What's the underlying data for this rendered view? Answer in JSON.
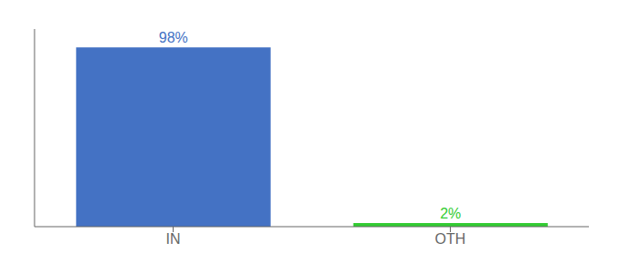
{
  "chart_data": {
    "type": "bar",
    "categories": [
      "IN",
      "OTH"
    ],
    "values": [
      98,
      2
    ],
    "colors": [
      "#4472C4",
      "#33CC33"
    ],
    "value_labels": [
      "98%",
      "2%"
    ],
    "data_labels": true,
    "ylim": [
      0,
      108
    ],
    "yticks": [],
    "tick_labels": "x",
    "grid": false
  }
}
